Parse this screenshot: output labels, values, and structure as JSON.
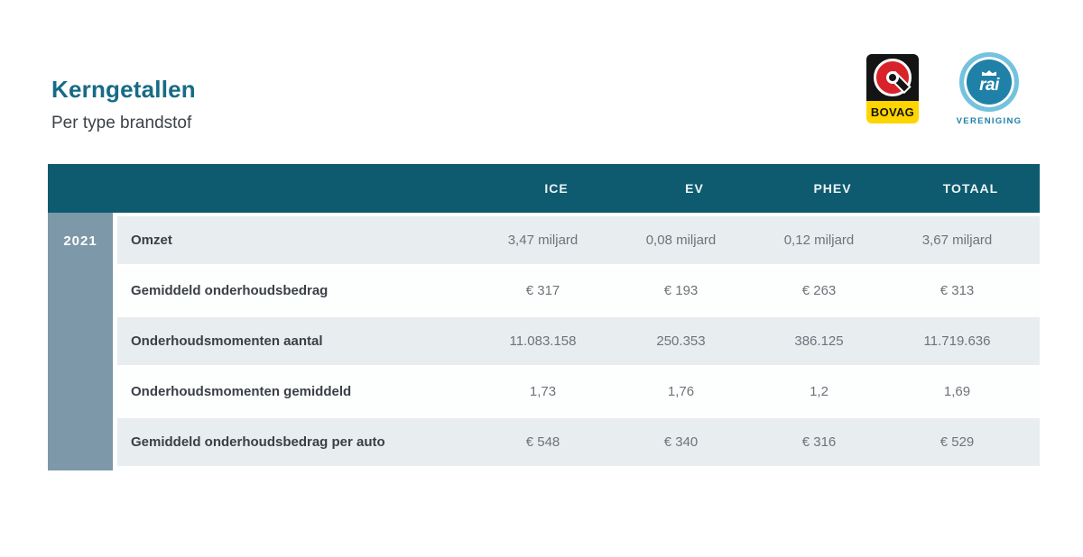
{
  "header": {
    "title": "Kerngetallen",
    "subtitle": "Per type brandstof"
  },
  "logos": {
    "bovag": {
      "label": "BOVAG"
    },
    "rai": {
      "wordmark": "rai",
      "label": "VERENIGING"
    }
  },
  "table": {
    "year": "2021",
    "columns": [
      "ICE",
      "EV",
      "PHEV",
      "TOTAAL"
    ],
    "rows": [
      {
        "label": "Omzet",
        "values": [
          "3,47 miljard",
          "0,08 miljard",
          "0,12 miljard",
          "3,67 miljard"
        ]
      },
      {
        "label": "Gemiddeld onderhoudsbedrag",
        "values": [
          "€ 317",
          "€ 193",
          "€ 263",
          "€ 313"
        ]
      },
      {
        "label": "Onderhoudsmomenten aantal",
        "values": [
          "11.083.158",
          "250.353",
          "386.125",
          "11.719.636"
        ]
      },
      {
        "label": "Onderhoudsmomenten gemiddeld",
        "values": [
          "1,73",
          "1,76",
          "1,2",
          "1,69"
        ]
      },
      {
        "label": "Gemiddeld onderhoudsbedrag per auto",
        "values": [
          "€ 548",
          "€ 340",
          "€ 316",
          "€ 529"
        ]
      }
    ]
  },
  "colors": {
    "title_teal": "#176b86",
    "header_teal": "#0e5a6e",
    "sidebar_blue_gray": "#7d98a8",
    "row_alt_gray": "#e8edf0",
    "bovag_yellow": "#ffd500",
    "bovag_red": "#d8232a",
    "rai_light_blue": "#74c3de",
    "rai_blue": "#1f81a7"
  },
  "chart_data": {
    "type": "table",
    "title": "Kerngetallen",
    "subtitle": "Per type brandstof",
    "group": "2021",
    "columns": [
      "ICE",
      "EV",
      "PHEV",
      "TOTAAL"
    ],
    "rows": [
      {
        "label": "Omzet",
        "values": [
          "3,47 miljard",
          "0,08 miljard",
          "0,12 miljard",
          "3,67 miljard"
        ]
      },
      {
        "label": "Gemiddeld onderhoudsbedrag",
        "values": [
          "€ 317",
          "€ 193",
          "€ 263",
          "€ 313"
        ]
      },
      {
        "label": "Onderhoudsmomenten aantal",
        "values": [
          "11.083.158",
          "250.353",
          "386.125",
          "11.719.636"
        ]
      },
      {
        "label": "Onderhoudsmomenten gemiddeld",
        "values": [
          "1,73",
          "1,76",
          "1,2",
          "1,69"
        ]
      },
      {
        "label": "Gemiddeld onderhoudsbedrag per auto",
        "values": [
          "€ 548",
          "€ 340",
          "€ 316",
          "€ 529"
        ]
      }
    ]
  }
}
